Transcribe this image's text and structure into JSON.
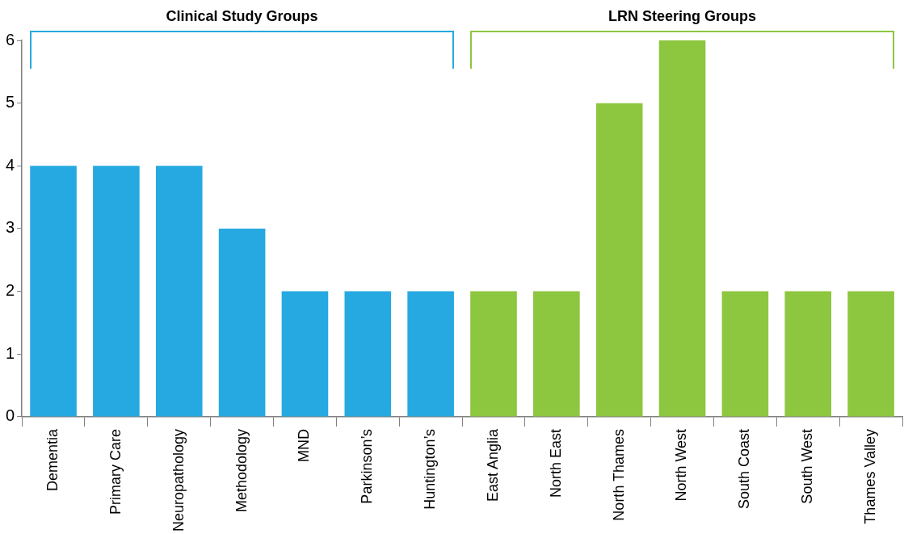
{
  "chart_data": {
    "type": "bar",
    "categories": [
      "Dementia",
      "Primary Care",
      "Neuropathology",
      "Methodology",
      "MND",
      "Parkinson’s",
      "Huntington’s",
      "East Anglia",
      "North East",
      "North Thames",
      "North West",
      "South Coast",
      "South West",
      "Thames Valley"
    ],
    "values": [
      4,
      4,
      4,
      3,
      2,
      2,
      2,
      2,
      2,
      5,
      6,
      2,
      2,
      2
    ],
    "colors": [
      "#26a9e0",
      "#26a9e0",
      "#26a9e0",
      "#26a9e0",
      "#26a9e0",
      "#26a9e0",
      "#26a9e0",
      "#8dc63f",
      "#8dc63f",
      "#8dc63f",
      "#8dc63f",
      "#8dc63f",
      "#8dc63f",
      "#8dc63f"
    ],
    "ylim": [
      0,
      6
    ],
    "yticks": [
      0,
      1,
      2,
      3,
      4,
      5,
      6
    ],
    "annotations": [
      "Clinical Study Groups",
      "LRN Steering Groups"
    ]
  }
}
